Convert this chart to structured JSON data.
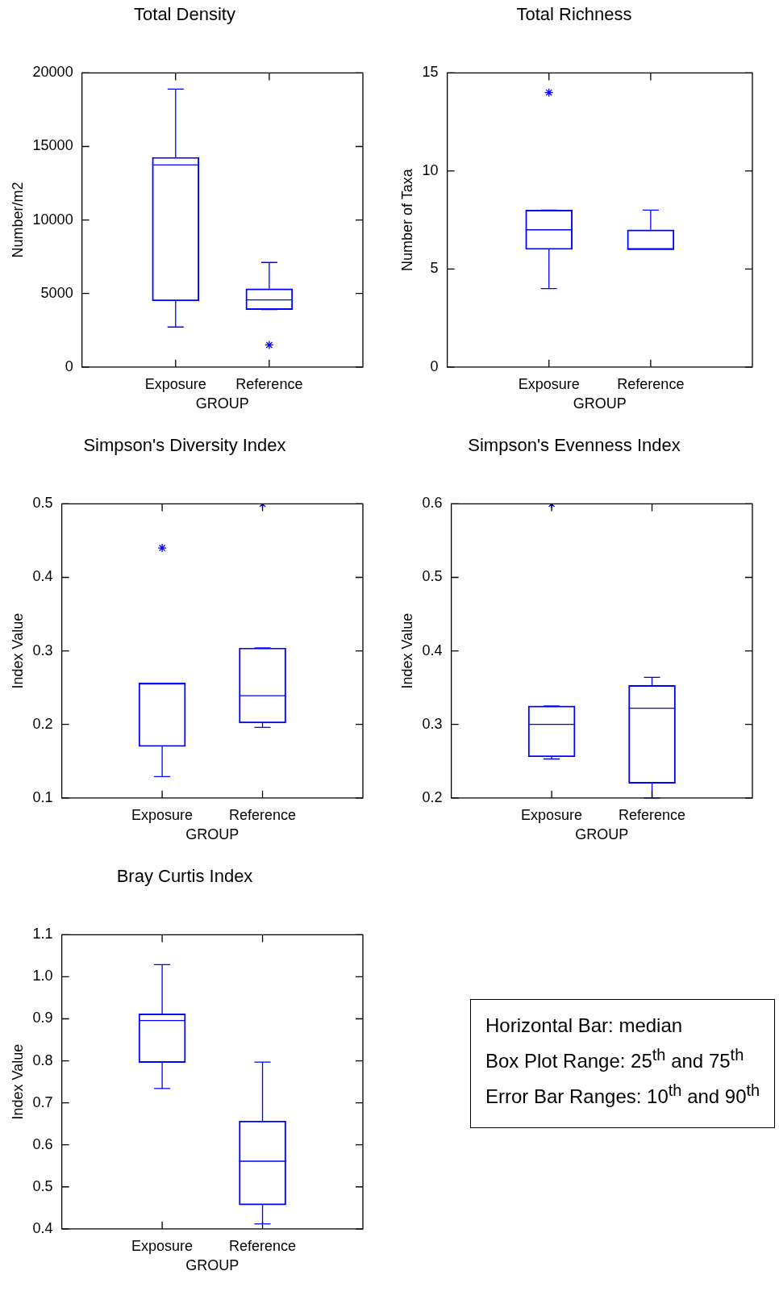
{
  "chart_data": [
    {
      "type": "box",
      "title": "Total Density",
      "xlabel": "GROUP",
      "ylabel": "Number/m2",
      "categories": [
        "Exposure",
        "Reference"
      ],
      "ylim": [
        0,
        20000
      ],
      "yticks": [
        0,
        5000,
        10000,
        15000,
        20000
      ],
      "series": [
        {
          "color": "#0000ff",
          "boxes": [
            {
              "low": 2720,
              "q1": 4490,
              "median": 13740,
              "q3": 14260,
              "high": 18900
            },
            {
              "low": 3910,
              "q1": 3910,
              "median": 4570,
              "q3": 5320,
              "high": 7110,
              "outliers": [
                1500
              ]
            }
          ]
        }
      ]
    },
    {
      "type": "box",
      "title": "Total Richness",
      "xlabel": "GROUP",
      "ylabel": "Number of Taxa",
      "categories": [
        "Exposure",
        "Reference"
      ],
      "ylim": [
        0,
        15
      ],
      "yticks": [
        0,
        5,
        10,
        15
      ],
      "series": [
        {
          "color": "#0000ff",
          "boxes": [
            {
              "low": 4,
              "q1": 6,
              "median": 7,
              "q3": 8,
              "high": 8,
              "outliers": [
                14
              ]
            },
            {
              "low": 6,
              "q1": 6,
              "median": 6,
              "q3": 7,
              "high": 8
            }
          ]
        }
      ]
    },
    {
      "type": "box",
      "title": "Simpson's Diversity Index",
      "xlabel": "GROUP",
      "ylabel": "Index Value",
      "categories": [
        "Exposure",
        "Reference"
      ],
      "ylim": [
        0.1,
        0.5
      ],
      "yticks": [
        0.1,
        0.2,
        0.3,
        0.4,
        0.5
      ],
      "series": [
        {
          "color": "#0000ff",
          "boxes": [
            {
              "low": 0.129,
              "q1": 0.17,
              "median": 0.256,
              "q3": 0.256,
              "high": 0.256,
              "outliers": [
                0.44
              ]
            },
            {
              "low": 0.196,
              "q1": 0.202,
              "median": 0.239,
              "q3": 0.304,
              "high": 0.304,
              "outliers": [
                0.5
              ]
            }
          ]
        }
      ]
    },
    {
      "type": "box",
      "title": "Simpson's Evenness Index",
      "xlabel": "GROUP",
      "ylabel": "Index Value",
      "categories": [
        "Exposure",
        "Reference"
      ],
      "ylim": [
        0.2,
        0.6
      ],
      "yticks": [
        0.2,
        0.3,
        0.4,
        0.5,
        0.6
      ],
      "series": [
        {
          "color": "#0000ff",
          "boxes": [
            {
              "low": 0.253,
              "q1": 0.256,
              "median": 0.3,
              "q3": 0.325,
              "high": 0.325,
              "outliers": [
                0.6
              ]
            },
            {
              "low": 0.2,
              "q1": 0.22,
              "median": 0.322,
              "q3": 0.353,
              "high": 0.364
            }
          ]
        }
      ]
    },
    {
      "type": "box",
      "title": "Bray Curtis Index",
      "xlabel": "GROUP",
      "ylabel": "Index Value",
      "categories": [
        "Exposure",
        "Reference"
      ],
      "ylim": [
        0.4,
        1.1
      ],
      "yticks": [
        0.4,
        0.5,
        0.6,
        0.7,
        0.8,
        0.9,
        {
          "value": 1,
          "label": "1.0"
        },
        1.1
      ],
      "series": [
        {
          "color": "#0000ff",
          "boxes": [
            {
              "low": 0.734,
              "q1": 0.796,
              "median": 0.896,
              "q3": 0.912,
              "high": 1.029
            },
            {
              "low": 0.412,
              "q1": 0.457,
              "median": 0.561,
              "q3": 0.657,
              "high": 0.797
            }
          ]
        }
      ]
    },
    {
      "type": "other",
      "annotations": [
        "Horizontal Bar:  median",
        "Box Plot Range:  25$^{th}$ and 75$^{th}$",
        "Error Bar Ranges:  10$^{th}$ and 90$^{th}$"
      ]
    }
  ]
}
